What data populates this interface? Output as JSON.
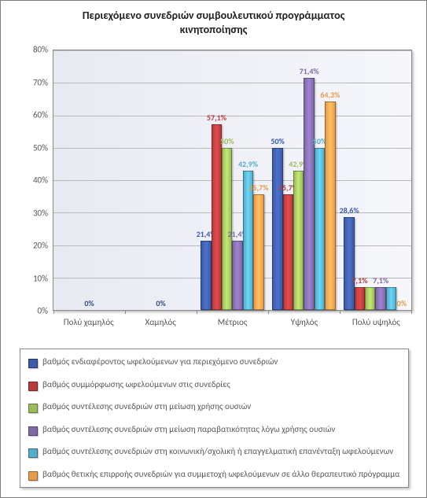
{
  "title_line1": "Περιεχόμενο συνεδριών συμβουλευτικού προγράμματος",
  "title_line2": "κινητοποίησης",
  "ymax": 80,
  "ytick_step": 10,
  "yticks": [
    {
      "v": 0,
      "label": "0%"
    },
    {
      "v": 10,
      "label": "10%"
    },
    {
      "v": 20,
      "label": "20%"
    },
    {
      "v": 30,
      "label": "30%"
    },
    {
      "v": 40,
      "label": "40%"
    },
    {
      "v": 50,
      "label": "50%"
    },
    {
      "v": 60,
      "label": "60%"
    },
    {
      "v": 70,
      "label": "70%"
    },
    {
      "v": 80,
      "label": "80%"
    }
  ],
  "categories": [
    "Πολύ χαμηλός",
    "Χαμηλός",
    "Μέτριος",
    "Υψηλός",
    "Πολύ υψηλός"
  ],
  "series": [
    {
      "label": "βαθμός ενδιαφέροντος ωφελούμενων για περιεχόμενο συνεδριών",
      "color": "#3b5ba5"
    },
    {
      "label": "βαθμός συμμόρφωσης ωφελούμενων στις συνεδρίες",
      "color": "#b63c3d"
    },
    {
      "label": "βαθμός συντέλεσης συνεδριών στη μείωση χρήσης ουσιών",
      "color": "#9cbb5b"
    },
    {
      "label": "βαθμός συντέλεσης συνεδριών στη μείωση παραβατικότητας λόγω χρήσης ουσιών",
      "color": "#7f69a6"
    },
    {
      "label": "βαθμός συντέλεσης συνεδριών στη κοινωνική/σχολική ή επαγγελματική επανένταξη ωφελούμενων",
      "color": "#55adc8"
    },
    {
      "label": "βαθμός θετικής επιρροής συνεδριών για συμμετοχή ωφελούμενων σε άλλο θεραπευτικό πρόγραμμα",
      "color": "#e89b4b"
    }
  ],
  "data": [
    {
      "zero_label": "0%",
      "values": [
        {
          "v": 0
        },
        {
          "v": 0
        },
        {
          "v": 0
        },
        {
          "v": 0
        },
        {
          "v": 0
        },
        {
          "v": 0
        }
      ]
    },
    {
      "zero_label": "0%",
      "values": [
        {
          "v": 0
        },
        {
          "v": 0
        },
        {
          "v": 0
        },
        {
          "v": 0
        },
        {
          "v": 0
        },
        {
          "v": 0
        }
      ]
    },
    {
      "zero_label": null,
      "values": [
        {
          "v": 21.4,
          "label": "21,4%"
        },
        {
          "v": 57.1,
          "label": "57,1%"
        },
        {
          "v": 50.0,
          "label": "50%"
        },
        {
          "v": 21.4,
          "label": "21,4%"
        },
        {
          "v": 42.9,
          "label": "42,9%"
        },
        {
          "v": 35.7,
          "label": "35,7%"
        }
      ]
    },
    {
      "zero_label": null,
      "values": [
        {
          "v": 50.0,
          "label": "50%"
        },
        {
          "v": 35.7,
          "label": "35,7%"
        },
        {
          "v": 42.9,
          "label": "42,9%"
        },
        {
          "v": 71.4,
          "label": "71,4%"
        },
        {
          "v": 50.0,
          "label": "50%"
        },
        {
          "v": 64.3,
          "label": "64,3%"
        }
      ]
    },
    {
      "zero_label": null,
      "values": [
        {
          "v": 28.6,
          "label": "28,6%"
        },
        {
          "v": 7.1,
          "label": "7,1%"
        },
        {
          "v": 7.1,
          "label": ""
        },
        {
          "v": 7.1,
          "label": "7,1%"
        },
        {
          "v": 7.1,
          "label": ""
        },
        {
          "v": 0.0,
          "label": "0%"
        }
      ]
    }
  ]
}
